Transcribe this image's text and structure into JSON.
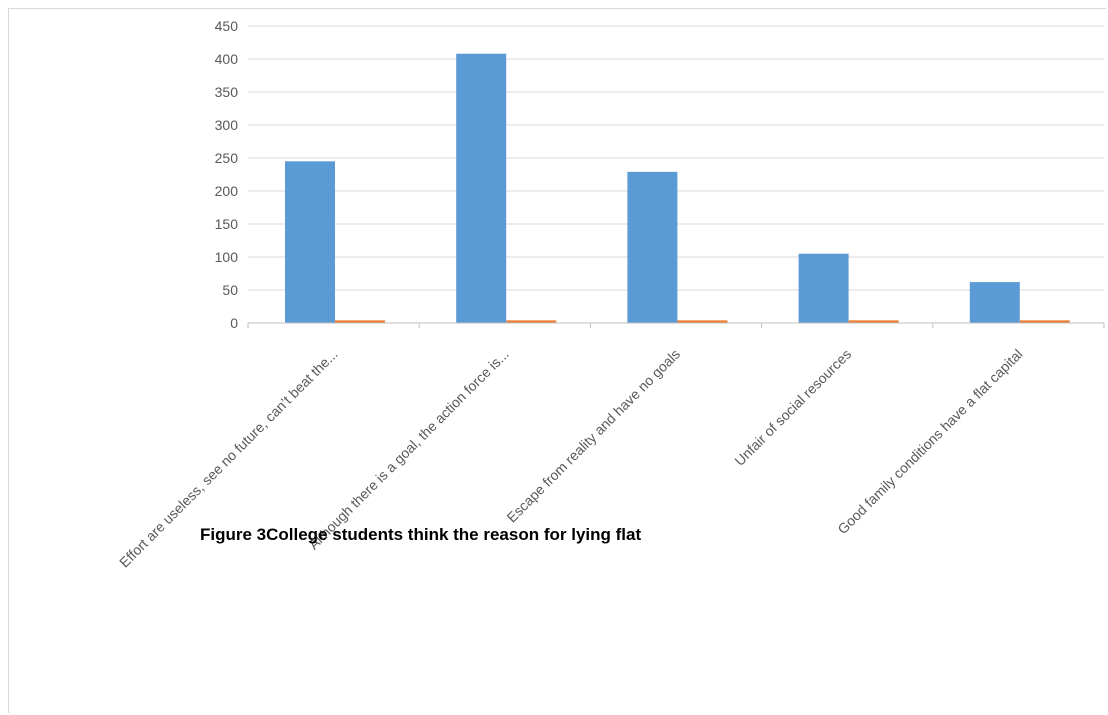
{
  "chart_data": {
    "type": "bar",
    "categories": [
      "Effort are useless, see no future, can’t beat the...",
      "Although there is a goal, the action force is...",
      "Escape from reality and have no goals",
      "Unfair of social resources",
      "Good family conditions have a flat capital"
    ],
    "series": [
      {
        "values": [
          245,
          408,
          229,
          105,
          62
        ],
        "color": "#5b9bd5"
      },
      {
        "values": [
          4,
          4,
          4,
          4,
          4
        ],
        "color": "#ed7d31"
      }
    ],
    "ylim": [
      0,
      450
    ],
    "yticks": [
      0,
      50,
      100,
      150,
      200,
      250,
      300,
      350,
      400,
      450
    ],
    "title": "",
    "xlabel": "",
    "ylabel": "",
    "grid": true,
    "caption": "Figure 3College students think the reason for lying flat"
  }
}
